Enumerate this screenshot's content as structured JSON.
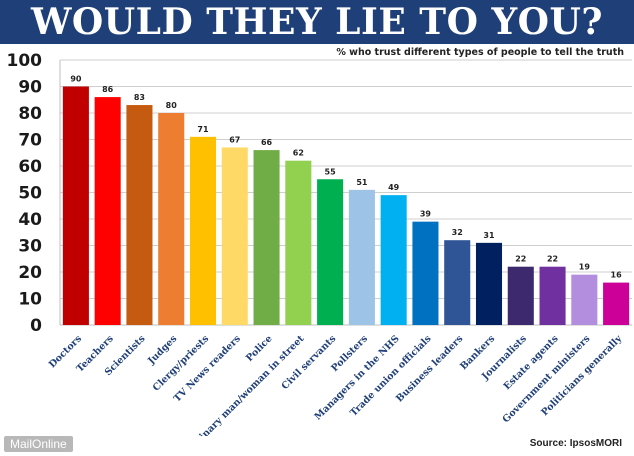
{
  "header": {
    "title": "WOULD THEY LIE TO YOU?",
    "subtitle": "% who trust different types of people to tell the truth"
  },
  "footer": {
    "publisher": "MailOnline",
    "source": "Source: IpsosMORI"
  },
  "chart_data": {
    "type": "bar",
    "title": "WOULD THEY LIE TO YOU?",
    "subtitle": "% who trust different types of people to tell the truth",
    "xlabel": "",
    "ylabel": "",
    "ylim": [
      0,
      100
    ],
    "yticks": [
      0,
      10,
      20,
      30,
      40,
      50,
      60,
      70,
      80,
      90,
      100
    ],
    "grid": true,
    "legend": "none",
    "categories": [
      "Doctors",
      "Teachers",
      "Scientists",
      "Judges",
      "Clergy/priests",
      "TV News readers",
      "Police",
      "Ordinary man/woman in street",
      "Civil servants",
      "Pollsters",
      "Managers in the NHS",
      "Trade union officials",
      "Business leaders",
      "Bankers",
      "Journalists",
      "Estate agents",
      "Government ministers",
      "Politicians generally"
    ],
    "values": [
      90,
      86,
      83,
      80,
      71,
      67,
      66,
      62,
      55,
      51,
      49,
      39,
      32,
      31,
      22,
      22,
      19,
      16
    ],
    "colors": [
      "#c00000",
      "#ff0000",
      "#c55a11",
      "#ed7d31",
      "#ffc000",
      "#ffd966",
      "#70ad47",
      "#92d050",
      "#00b050",
      "#9dc3e6",
      "#00b0f0",
      "#0070c0",
      "#2f5597",
      "#002060",
      "#3d2a6e",
      "#7030a0",
      "#b48ede",
      "#cc0099"
    ]
  }
}
